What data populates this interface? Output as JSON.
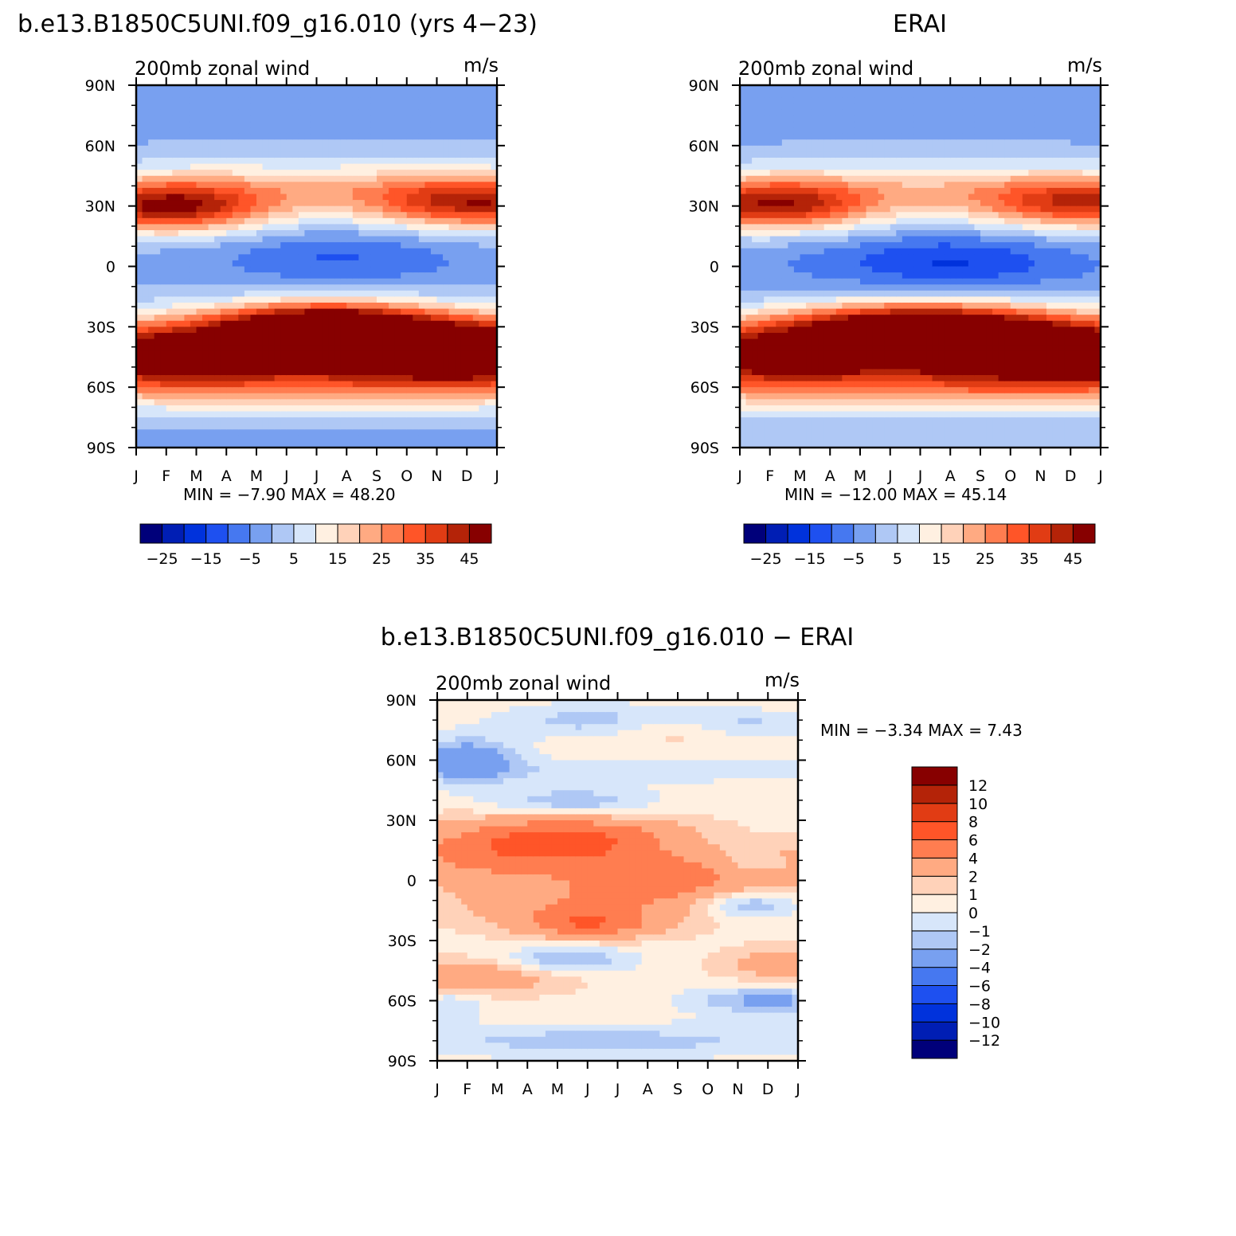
{
  "chart_data": [
    {
      "type": "heatmap",
      "title": "b.e13.B1850C5UNI.f09_g16.010 (yrs 4-23)",
      "left_string": "200mb  zonal  wind",
      "right_string": "m/s",
      "x_ticks": [
        "J",
        "F",
        "M",
        "A",
        "M",
        "J",
        "J",
        "A",
        "S",
        "O",
        "N",
        "D",
        "J"
      ],
      "y_ticks": [
        "90N",
        "60N",
        "30N",
        "0",
        "30S",
        "60S",
        "90S"
      ],
      "stats": {
        "min_label": "MIN =",
        "min": "-7.90",
        "max_label": "MAX =",
        "max": "48.20"
      },
      "colorbar": {
        "orientation": "horizontal",
        "levels": [
          -30,
          -25,
          -20,
          -15,
          -10,
          -5,
          0,
          5,
          10,
          15,
          20,
          25,
          30,
          35,
          40,
          45
        ],
        "labels": [
          "-25",
          "-15",
          "-5",
          "5",
          "15",
          "25",
          "35",
          "45"
        ],
        "colors": [
          "#00007a",
          "#001eb4",
          "#0032dc",
          "#1e50f0",
          "#4678f0",
          "#78a0f0",
          "#afc8f5",
          "#d7e6fa",
          "#fff0e1",
          "#ffd2b9",
          "#ffaa82",
          "#ff7d50",
          "#ff5528",
          "#e13c14",
          "#b42308",
          "#870000"
        ]
      },
      "field_kind": "model"
    },
    {
      "type": "heatmap",
      "title": "ERAI",
      "left_string": "200mb  zonal  wind",
      "right_string": "m/s",
      "x_ticks": [
        "J",
        "F",
        "M",
        "A",
        "M",
        "J",
        "J",
        "A",
        "S",
        "O",
        "N",
        "D",
        "J"
      ],
      "y_ticks": [
        "90N",
        "60N",
        "30N",
        "0",
        "30S",
        "60S",
        "90S"
      ],
      "stats": {
        "min_label": "MIN =",
        "min": "-12.00",
        "max_label": "MAX =",
        "max": "45.14"
      },
      "colorbar": {
        "orientation": "horizontal",
        "levels": [
          -30,
          -25,
          -20,
          -15,
          -10,
          -5,
          0,
          5,
          10,
          15,
          20,
          25,
          30,
          35,
          40,
          45
        ],
        "labels": [
          "-25",
          "-15",
          "-5",
          "5",
          "15",
          "25",
          "35",
          "45"
        ],
        "colors": [
          "#00007a",
          "#001eb4",
          "#0032dc",
          "#1e50f0",
          "#4678f0",
          "#78a0f0",
          "#afc8f5",
          "#d7e6fa",
          "#fff0e1",
          "#ffd2b9",
          "#ffaa82",
          "#ff7d50",
          "#ff5528",
          "#e13c14",
          "#b42308",
          "#870000"
        ]
      },
      "field_kind": "obs"
    },
    {
      "type": "heatmap",
      "title": "b.e13.B1850C5UNI.f09_g16.010 - ERAI",
      "left_string": "200mb  zonal  wind",
      "right_string": "m/s",
      "x_ticks": [
        "J",
        "F",
        "M",
        "A",
        "M",
        "J",
        "J",
        "A",
        "S",
        "O",
        "N",
        "D",
        "J"
      ],
      "y_ticks": [
        "90N",
        "60N",
        "30N",
        "0",
        "30S",
        "60S",
        "90S"
      ],
      "stats": {
        "min_label": "MIN =",
        "min": "-3.34",
        "max_label": "MAX =",
        "max": "7.43"
      },
      "colorbar": {
        "orientation": "vertical",
        "levels": [
          -14,
          -12,
          -10,
          -8,
          -6,
          -4,
          -2,
          -1,
          0,
          1,
          2,
          4,
          6,
          8,
          10,
          12
        ],
        "labels": [
          "-12",
          "-10",
          "-8",
          "-6",
          "-4",
          "-2",
          "-1",
          "0",
          "1",
          "2",
          "4",
          "6",
          "8",
          "10",
          "12"
        ],
        "colors": [
          "#00007a",
          "#001eb4",
          "#0032dc",
          "#1e50f0",
          "#4678f0",
          "#78a0f0",
          "#afc8f5",
          "#d7e6fa",
          "#fff0e1",
          "#ffd2b9",
          "#ffaa82",
          "#ff7d50",
          "#ff5528",
          "#e13c14",
          "#b42308",
          "#870000"
        ]
      },
      "field_kind": "diff"
    }
  ]
}
